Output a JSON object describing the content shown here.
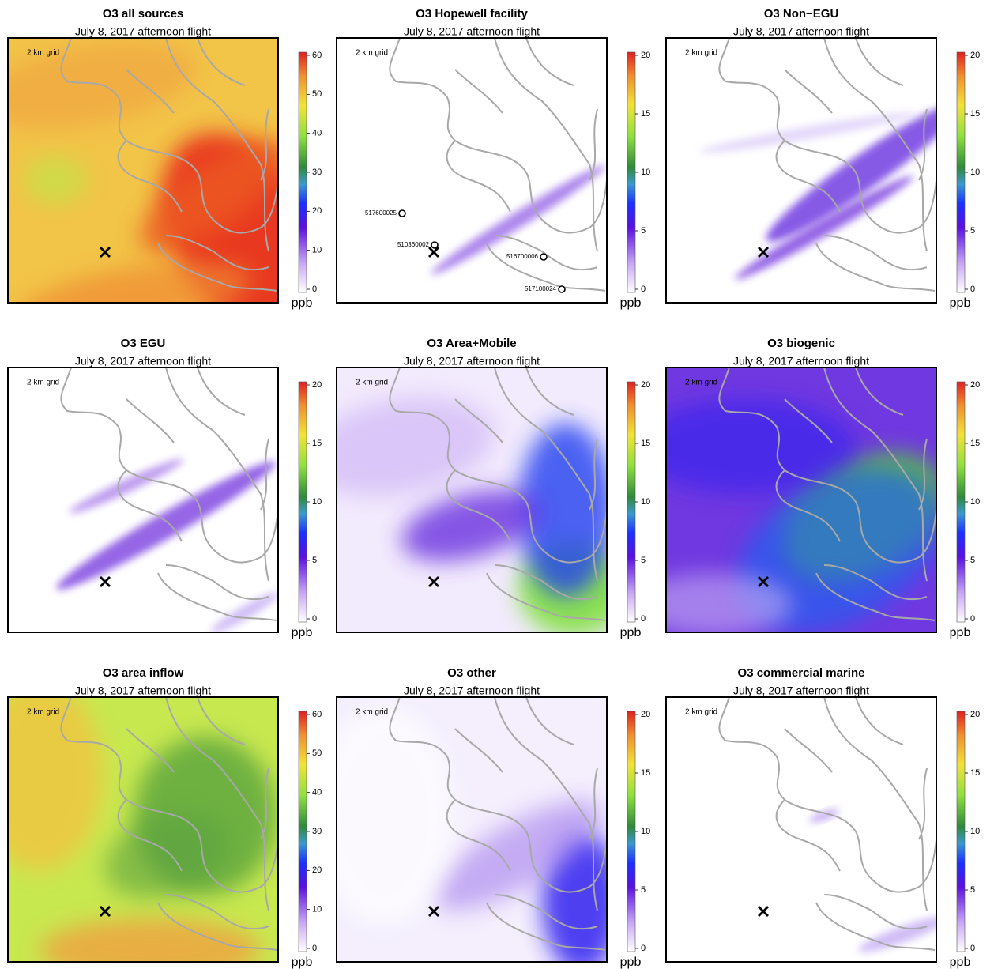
{
  "panels": [
    {
      "title": "O3 all sources",
      "subtitle": "July 8, 2017 afternoon flight",
      "grid_label": "2 km grid",
      "colorbar": {
        "lim": [
          0,
          60
        ],
        "ticks": [
          0,
          10,
          20,
          30,
          40,
          50,
          60
        ],
        "unit": "ppb"
      }
    },
    {
      "title": "O3 Hopewell facility",
      "subtitle": "July 8, 2017 afternoon flight",
      "grid_label": "2 km grid",
      "colorbar": {
        "lim": [
          0,
          20
        ],
        "ticks": [
          0,
          5,
          10,
          15,
          20
        ],
        "unit": "ppb"
      },
      "sites": [
        "517600025",
        "510360002",
        "516700006",
        "517100024"
      ]
    },
    {
      "title": "O3 Non−EGU",
      "subtitle": "July 8, 2017 afternoon flight",
      "grid_label": "2 km grid",
      "colorbar": {
        "lim": [
          0,
          20
        ],
        "ticks": [
          0,
          5,
          10,
          15,
          20
        ],
        "unit": "ppb"
      }
    },
    {
      "title": "O3 EGU",
      "subtitle": "July 8, 2017 afternoon flight",
      "grid_label": "2 km grid",
      "colorbar": {
        "lim": [
          0,
          20
        ],
        "ticks": [
          0,
          5,
          10,
          15,
          20
        ],
        "unit": "ppb"
      }
    },
    {
      "title": "O3 Area+Mobile",
      "subtitle": "July 8, 2017 afternoon flight",
      "grid_label": "2 km grid",
      "colorbar": {
        "lim": [
          0,
          20
        ],
        "ticks": [
          0,
          5,
          10,
          15,
          20
        ],
        "unit": "ppb"
      }
    },
    {
      "title": "O3 biogenic",
      "subtitle": "July 8, 2017 afternoon flight",
      "grid_label": "2 km grid",
      "colorbar": {
        "lim": [
          0,
          20
        ],
        "ticks": [
          0,
          5,
          10,
          15,
          20
        ],
        "unit": "ppb"
      }
    },
    {
      "title": "O3 area inflow",
      "subtitle": "July 8, 2017 afternoon flight",
      "grid_label": "2 km grid",
      "colorbar": {
        "lim": [
          0,
          60
        ],
        "ticks": [
          0,
          10,
          20,
          30,
          40,
          50,
          60
        ],
        "unit": "ppb"
      }
    },
    {
      "title": "O3 other",
      "subtitle": "July 8, 2017 afternoon flight",
      "grid_label": "2 km grid",
      "colorbar": {
        "lim": [
          0,
          20
        ],
        "ticks": [
          0,
          5,
          10,
          15,
          20
        ],
        "unit": "ppb"
      }
    },
    {
      "title": "O3 commercial marine",
      "subtitle": "July 8, 2017 afternoon flight",
      "grid_label": "2 km grid",
      "colorbar": {
        "lim": [
          0,
          20
        ],
        "ticks": [
          0,
          5,
          10,
          15,
          20
        ],
        "unit": "ppb"
      }
    }
  ]
}
